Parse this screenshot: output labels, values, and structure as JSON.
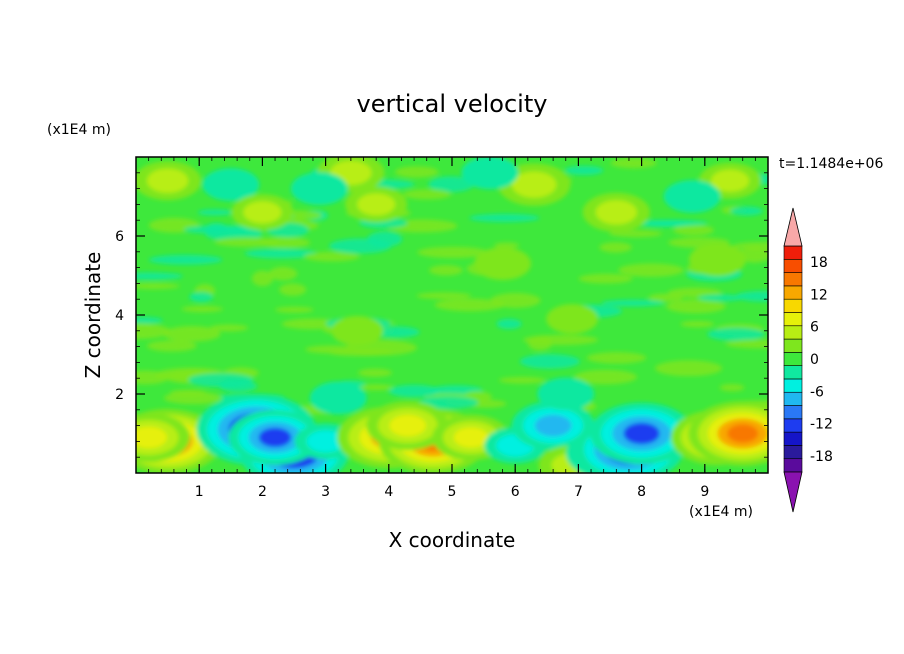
{
  "chart_data": {
    "type": "heatmap",
    "title": "vertical velocity",
    "xlabel": "X coordinate",
    "ylabel": "Z coordinate",
    "x_unit": "(x1E4 m)",
    "y_unit": "(x1E4 m)",
    "annotation": "t=1.1484e+06",
    "xlim": [
      0,
      10
    ],
    "ylim": [
      0,
      8
    ],
    "x_ticks": [
      "1",
      "2",
      "3",
      "4",
      "5",
      "6",
      "7",
      "8",
      "9"
    ],
    "y_ticks": [
      "2",
      "4",
      "6"
    ],
    "colorbar": {
      "min": -21,
      "max": 21,
      "step": 3,
      "tick_labels": [
        "18",
        "12",
        "6",
        "0",
        "-6",
        "-12",
        "-18"
      ],
      "tick_values": [
        18,
        12,
        6,
        0,
        -6,
        -12,
        -18
      ],
      "colors": [
        "#5a0b9c",
        "#2a1a9c",
        "#1515c8",
        "#1e3cf0",
        "#2a78f5",
        "#20b8f0",
        "#00f0e0",
        "#10e8a0",
        "#3ee83c",
        "#7ee61e",
        "#b8ee14",
        "#e6f00a",
        "#f8d800",
        "#f8a800",
        "#f87800",
        "#f84e00",
        "#f01e0a"
      ],
      "over_color": "#f8a8a8",
      "under_color": "#8a12b0"
    },
    "features": [
      {
        "x": 0.5,
        "z": 0.8,
        "w": 14
      },
      {
        "x": 0.2,
        "z": 0.9,
        "w": 9
      },
      {
        "x": 1.9,
        "z": 1.1,
        "w": -16
      },
      {
        "x": 2.5,
        "z": 0.5,
        "w": -14
      },
      {
        "x": 2.2,
        "z": 0.9,
        "w": -11
      },
      {
        "x": 3.0,
        "z": 0.8,
        "w": -5
      },
      {
        "x": 4.0,
        "z": 0.9,
        "w": 13
      },
      {
        "x": 4.7,
        "z": 0.8,
        "w": 14
      },
      {
        "x": 4.3,
        "z": 1.2,
        "w": 9
      },
      {
        "x": 5.3,
        "z": 0.9,
        "w": 8
      },
      {
        "x": 6.0,
        "z": 0.7,
        "w": -5
      },
      {
        "x": 6.6,
        "z": 1.2,
        "w": -9
      },
      {
        "x": 6.9,
        "z": 0.2,
        "w": 6
      },
      {
        "x": 7.5,
        "z": 0.5,
        "w": -10
      },
      {
        "x": 7.8,
        "z": 0.6,
        "w": -14
      },
      {
        "x": 8.0,
        "z": 1.0,
        "w": -13
      },
      {
        "x": 9.2,
        "z": 0.9,
        "w": 11
      },
      {
        "x": 9.6,
        "z": 1.0,
        "w": 14
      },
      {
        "x": 3.2,
        "z": 1.9,
        "w": -4
      },
      {
        "x": 6.8,
        "z": 2.0,
        "w": -4
      },
      {
        "x": 0.5,
        "z": 7.4,
        "w": 6
      },
      {
        "x": 3.4,
        "z": 7.6,
        "w": 6
      },
      {
        "x": 3.8,
        "z": 6.8,
        "w": 5
      },
      {
        "x": 6.3,
        "z": 7.3,
        "w": 7
      },
      {
        "x": 7.6,
        "z": 6.6,
        "w": 6
      },
      {
        "x": 9.4,
        "z": 7.4,
        "w": 5
      },
      {
        "x": 1.5,
        "z": 7.3,
        "w": -4
      },
      {
        "x": 5.6,
        "z": 7.6,
        "w": -4
      },
      {
        "x": 2.9,
        "z": 7.2,
        "w": -4
      },
      {
        "x": 8.8,
        "z": 7.0,
        "w": -4
      },
      {
        "x": 2.0,
        "z": 6.6,
        "w": 5
      },
      {
        "x": 5.8,
        "z": 5.3,
        "w": 4
      },
      {
        "x": 9.2,
        "z": 5.4,
        "w": 4
      },
      {
        "x": 3.5,
        "z": 3.6,
        "w": 3
      },
      {
        "x": 6.9,
        "z": 3.9,
        "w": 3
      }
    ]
  }
}
